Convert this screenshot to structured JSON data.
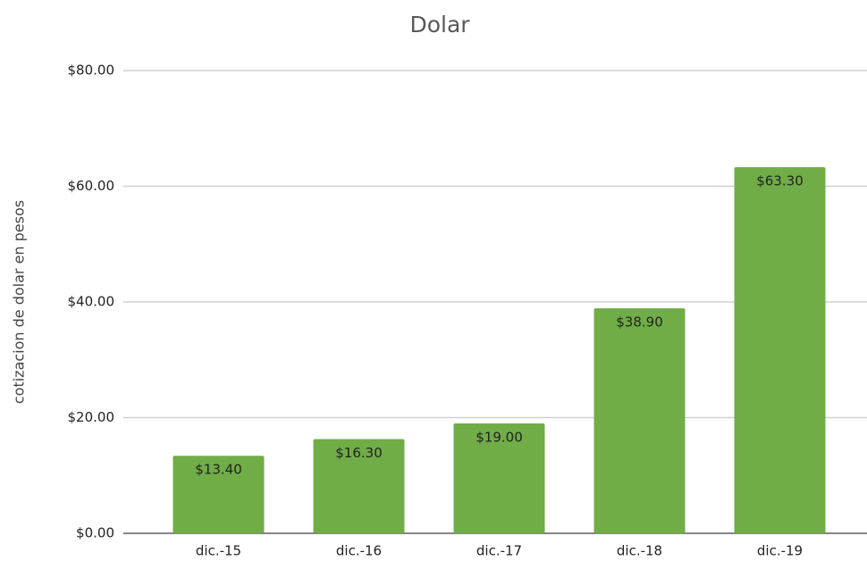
{
  "chart_data": {
    "type": "bar",
    "title": "Dolar",
    "y_label": "cotizacion de dolar en pesos",
    "categories": [
      "dic.-15",
      "dic.-16",
      "dic.-17",
      "dic.-18",
      "dic.-19"
    ],
    "values": [
      13.4,
      16.3,
      19.0,
      38.9,
      63.3
    ],
    "value_labels": [
      "$13.40",
      "$16.30",
      "$19.00",
      "$38.90",
      "$63.30"
    ],
    "color": "#70ad47",
    "ylim": [
      0,
      80
    ],
    "yticks": [
      {
        "value": 0,
        "label": "$0.00"
      },
      {
        "value": 20,
        "label": "$20.00"
      },
      {
        "value": 40,
        "label": "$40.00"
      },
      {
        "value": 60,
        "label": "$60.00"
      },
      {
        "value": 80,
        "label": "$80.00"
      }
    ],
    "grid": true
  }
}
